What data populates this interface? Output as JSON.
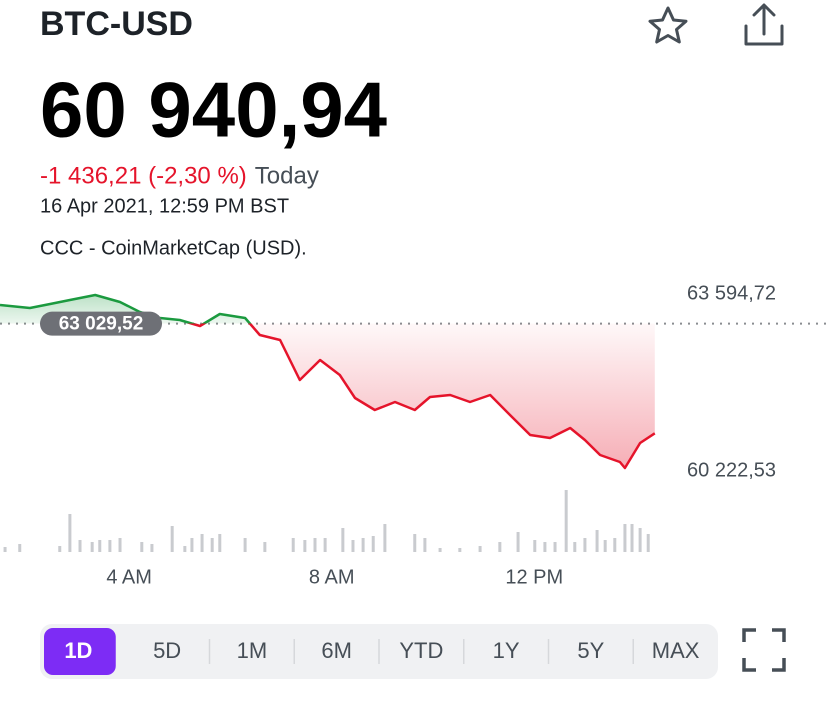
{
  "header": {
    "symbol": "BTC-USD"
  },
  "quote": {
    "price": "60 940,94",
    "change": "-1 436,21 (-2,30 %)",
    "period": "Today",
    "timestamp": "16 Apr 2021, 12:59 PM BST",
    "source": "CCC - CoinMarketCap (USD)."
  },
  "chart_data": {
    "type": "line",
    "x": [
      1.45,
      2.04,
      2.44,
      2.83,
      3.33,
      3.82,
      4.21,
      4.61,
      5.0,
      5.4,
      5.79,
      6.29,
      6.58,
      6.98,
      7.37,
      7.77,
      8.16,
      8.46,
      8.85,
      9.25,
      9.64,
      9.94,
      10.34,
      10.73,
      11.13,
      11.52,
      11.92,
      12.31,
      12.71,
      13.0,
      13.3,
      13.69,
      13.79,
      14.09,
      14.38
    ],
    "values": [
      63385,
      63328,
      63404,
      63480,
      63576,
      63442,
      63252,
      63137,
      63099,
      62985,
      63214,
      63137,
      62814,
      62718,
      61956,
      62337,
      62051,
      61613,
      61384,
      61537,
      61384,
      61632,
      61670,
      61537,
      61670,
      61290,
      60909,
      60852,
      61042,
      60813,
      60527,
      60394,
      60280,
      60756,
      60940.94
    ],
    "up_color": "#1b9a3f",
    "down_color": "#e5142b",
    "reference": {
      "value": 63029.52,
      "label": "63 029,52"
    },
    "xlim": [
      1.45,
      17.8
    ],
    "xticks": [
      {
        "value": 4,
        "label": "4 AM"
      },
      {
        "value": 8,
        "label": "8 AM"
      },
      {
        "value": 12,
        "label": "12 PM"
      }
    ],
    "ylim": [
      60222.53,
      63594.72
    ],
    "yticks": [
      {
        "value": 63594.72,
        "label": "63 594,72"
      },
      {
        "value": 60222.53,
        "label": "60 222,53"
      }
    ],
    "volume": {
      "color": "#c9cbcf",
      "ylim": [
        0,
        70
      ],
      "x": [
        1.55,
        1.84,
        2.63,
        2.83,
        3.03,
        3.27,
        3.42,
        3.62,
        3.82,
        4.25,
        4.45,
        4.85,
        5.1,
        5.24,
        5.44,
        5.64,
        5.79,
        6.29,
        6.68,
        7.24,
        7.47,
        7.67,
        7.87,
        8.22,
        8.42,
        8.62,
        8.82,
        9.05,
        9.64,
        9.84,
        10.14,
        10.53,
        10.93,
        11.32,
        11.68,
        12.01,
        12.21,
        12.41,
        12.63,
        12.8,
        13.0,
        13.24,
        13.4,
        13.59,
        13.79,
        13.93,
        14.09,
        14.25
      ],
      "values": [
        5,
        8,
        6,
        38,
        12,
        10,
        12,
        12,
        14,
        10,
        8,
        26,
        6,
        14,
        18,
        14,
        18,
        14,
        10,
        14,
        12,
        14,
        14,
        24,
        12,
        14,
        16,
        28,
        18,
        14,
        4,
        4,
        6,
        10,
        20,
        12,
        10,
        10,
        62,
        10,
        14,
        22,
        12,
        14,
        28,
        28,
        24,
        18
      ]
    }
  },
  "ranges": {
    "options": [
      "1D",
      "5D",
      "1M",
      "6M",
      "YTD",
      "1Y",
      "5Y",
      "MAX"
    ],
    "selected": 0,
    "accent": "#7d2cf5"
  }
}
